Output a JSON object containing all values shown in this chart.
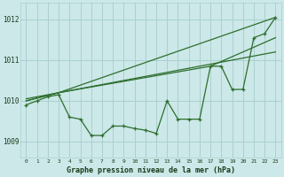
{
  "xlabel": "Graphe pression niveau de la mer (hPa)",
  "bg_color": "#cce8e8",
  "grid_color": "#aad0d0",
  "line_color": "#2d6e2d",
  "ylim": [
    1008.6,
    1012.4
  ],
  "xlim": [
    -0.5,
    23.5
  ],
  "yticks": [
    1009,
    1010,
    1011,
    1012
  ],
  "xticks": [
    0,
    1,
    2,
    3,
    4,
    5,
    6,
    7,
    8,
    9,
    10,
    11,
    12,
    13,
    14,
    15,
    16,
    17,
    18,
    19,
    20,
    21,
    22,
    23
  ],
  "main_line_x": [
    0,
    1,
    2,
    3,
    4,
    5,
    6,
    7,
    8,
    9,
    10,
    11,
    12,
    13,
    14,
    15,
    16,
    17,
    18,
    19,
    20,
    21,
    22,
    23
  ],
  "main_line_y": [
    1009.9,
    1010.0,
    1010.1,
    1010.15,
    1009.6,
    1009.55,
    1009.15,
    1009.15,
    1009.38,
    1009.38,
    1009.32,
    1009.28,
    1009.2,
    1010.0,
    1009.55,
    1009.55,
    1009.55,
    1010.85,
    1010.85,
    1010.28,
    1010.28,
    1011.55,
    1011.65,
    1012.05
  ],
  "tri_line1_x": [
    0,
    3,
    23
  ],
  "tri_line1_y": [
    1010.0,
    1010.2,
    1012.05
  ],
  "tri_line2_x": [
    0,
    3,
    17,
    23
  ],
  "tri_line2_y": [
    1010.0,
    1010.2,
    1010.85,
    1011.55
  ],
  "tri_line3_x": [
    0,
    23
  ],
  "tri_line3_y": [
    1010.05,
    1011.2
  ]
}
